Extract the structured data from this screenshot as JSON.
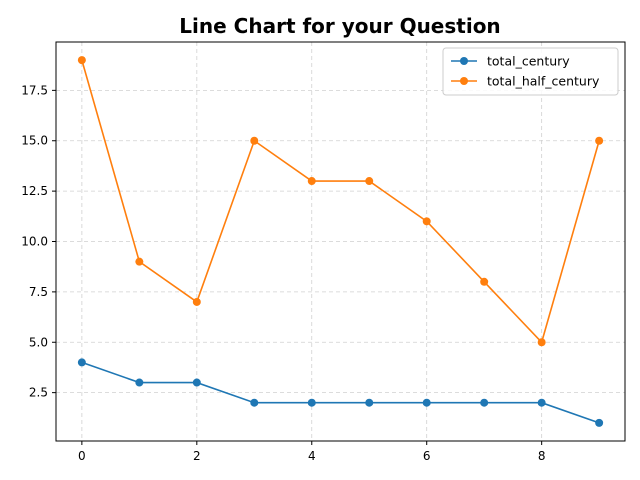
{
  "chart_data": {
    "type": "line",
    "title": "Line Chart for your Question",
    "xlabel": "",
    "ylabel": "",
    "x": [
      0,
      1,
      2,
      3,
      4,
      5,
      6,
      7,
      8,
      9
    ],
    "xlim": [
      -0.45,
      9.45
    ],
    "ylim": [
      0.1,
      19.9
    ],
    "xticks": [
      0,
      2,
      4,
      6,
      8
    ],
    "yticks": [
      2.5,
      5.0,
      7.5,
      10.0,
      12.5,
      15.0,
      17.5
    ],
    "grid": true,
    "legend_position": "top-right",
    "series": [
      {
        "name": "total_century",
        "color": "#1f77b4",
        "values": [
          4,
          3,
          3,
          2,
          2,
          2,
          2,
          2,
          2,
          1
        ]
      },
      {
        "name": "total_half_century",
        "color": "#ff7f0e",
        "values": [
          19,
          9,
          7,
          15,
          13,
          13,
          11,
          8,
          5,
          15
        ]
      }
    ]
  }
}
